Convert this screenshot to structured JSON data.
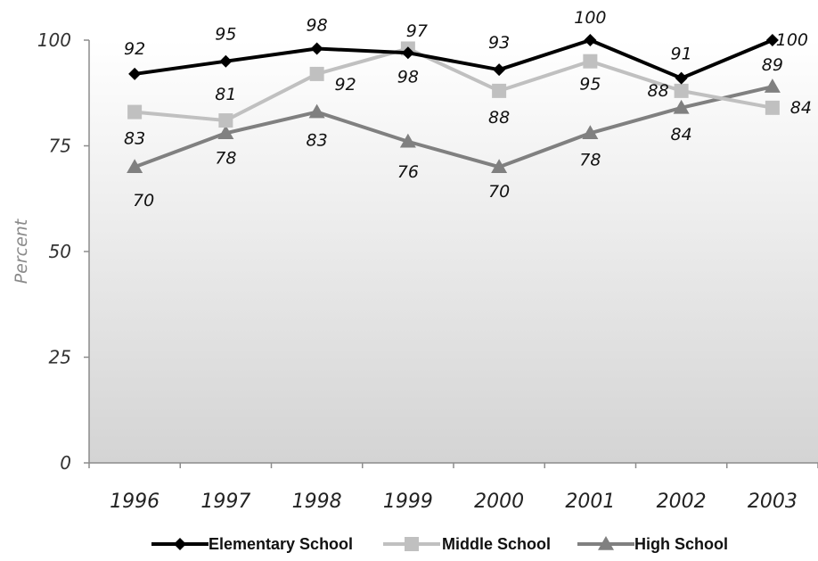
{
  "chart_data": {
    "type": "line",
    "title": "",
    "xlabel": "",
    "ylabel": "Percent",
    "categories": [
      "1996",
      "1997",
      "1998",
      "1999",
      "2000",
      "2001",
      "2002",
      "2003"
    ],
    "ylim": [
      0,
      100
    ],
    "yticks": [
      "0",
      "25",
      "50",
      "75",
      "100"
    ],
    "grid": false,
    "legend_position": "bottom",
    "background": "gradient white to light gray",
    "series": [
      {
        "name": "Elementary School",
        "values": [
          92,
          95,
          98,
          97,
          93,
          100,
          91,
          100
        ],
        "color": "#000000",
        "marker": "diamond"
      },
      {
        "name": "Middle School",
        "values": [
          83,
          81,
          92,
          98,
          88,
          95,
          88,
          84
        ],
        "color": "#c0c0c0",
        "marker": "square"
      },
      {
        "name": "High School",
        "values": [
          70,
          78,
          83,
          76,
          70,
          78,
          84,
          89
        ],
        "color": "#808080",
        "marker": "triangle"
      }
    ]
  }
}
